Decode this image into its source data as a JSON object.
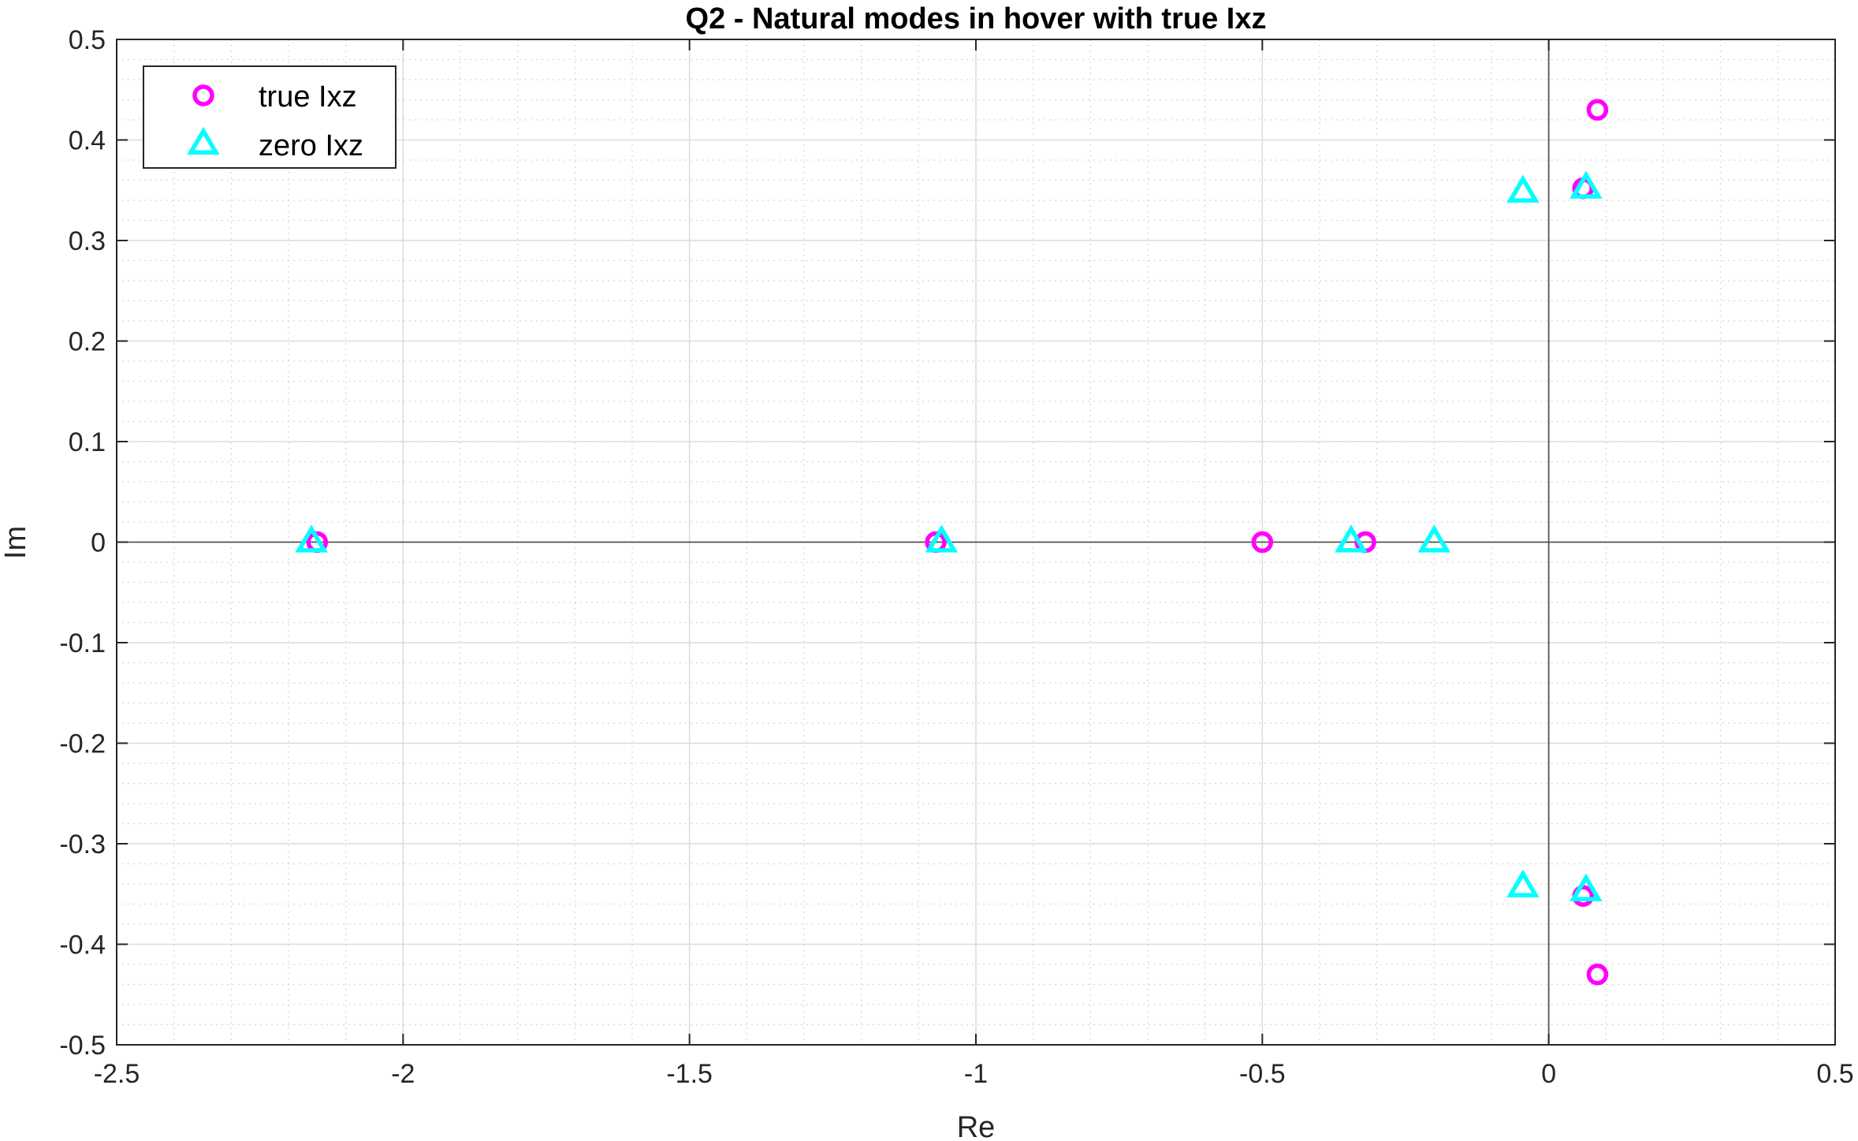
{
  "chart_data": {
    "type": "scatter",
    "title": "Q2 - Natural modes in hover with true Ixz",
    "xlabel": "Re",
    "ylabel": "Im",
    "xlim": [
      -2.5,
      0.5
    ],
    "ylim": [
      -0.5,
      0.5
    ],
    "x_ticks": [
      -2.5,
      -2,
      -1.5,
      -1,
      -0.5,
      0,
      0.5
    ],
    "y_ticks": [
      -0.5,
      -0.4,
      -0.3,
      -0.2,
      -0.1,
      0,
      0.1,
      0.2,
      0.3,
      0.4,
      0.5
    ],
    "x_tick_labels": [
      "-2.5",
      "-2",
      "-1.5",
      "-1",
      "-0.5",
      "0",
      "0.5"
    ],
    "y_tick_labels": [
      "-0.5",
      "-0.4",
      "-0.3",
      "-0.2",
      "-0.1",
      "0",
      "0.1",
      "0.2",
      "0.3",
      "0.4",
      "0.5"
    ],
    "grid": true,
    "minor_grid": true,
    "zero_lines": true,
    "legend_position": "top-left",
    "series": [
      {
        "name": "true Ixz",
        "marker": "circle",
        "color": "#ff00ff",
        "points": [
          {
            "x": -2.15,
            "y": 0
          },
          {
            "x": -1.07,
            "y": 0
          },
          {
            "x": -0.5,
            "y": 0
          },
          {
            "x": -0.32,
            "y": 0
          },
          {
            "x": 0.06,
            "y": 0.352
          },
          {
            "x": 0.06,
            "y": -0.352
          },
          {
            "x": 0.085,
            "y": 0.43
          },
          {
            "x": 0.085,
            "y": -0.43
          }
        ]
      },
      {
        "name": "zero Ixz",
        "marker": "triangle",
        "color": "#00ffff",
        "points": [
          {
            "x": -2.16,
            "y": 0
          },
          {
            "x": -1.06,
            "y": 0
          },
          {
            "x": -0.345,
            "y": 0
          },
          {
            "x": -0.2,
            "y": 0
          },
          {
            "x": -0.045,
            "y": 0.348
          },
          {
            "x": -0.045,
            "y": -0.343
          },
          {
            "x": 0.065,
            "y": 0.352
          },
          {
            "x": 0.065,
            "y": -0.347
          }
        ]
      }
    ]
  }
}
